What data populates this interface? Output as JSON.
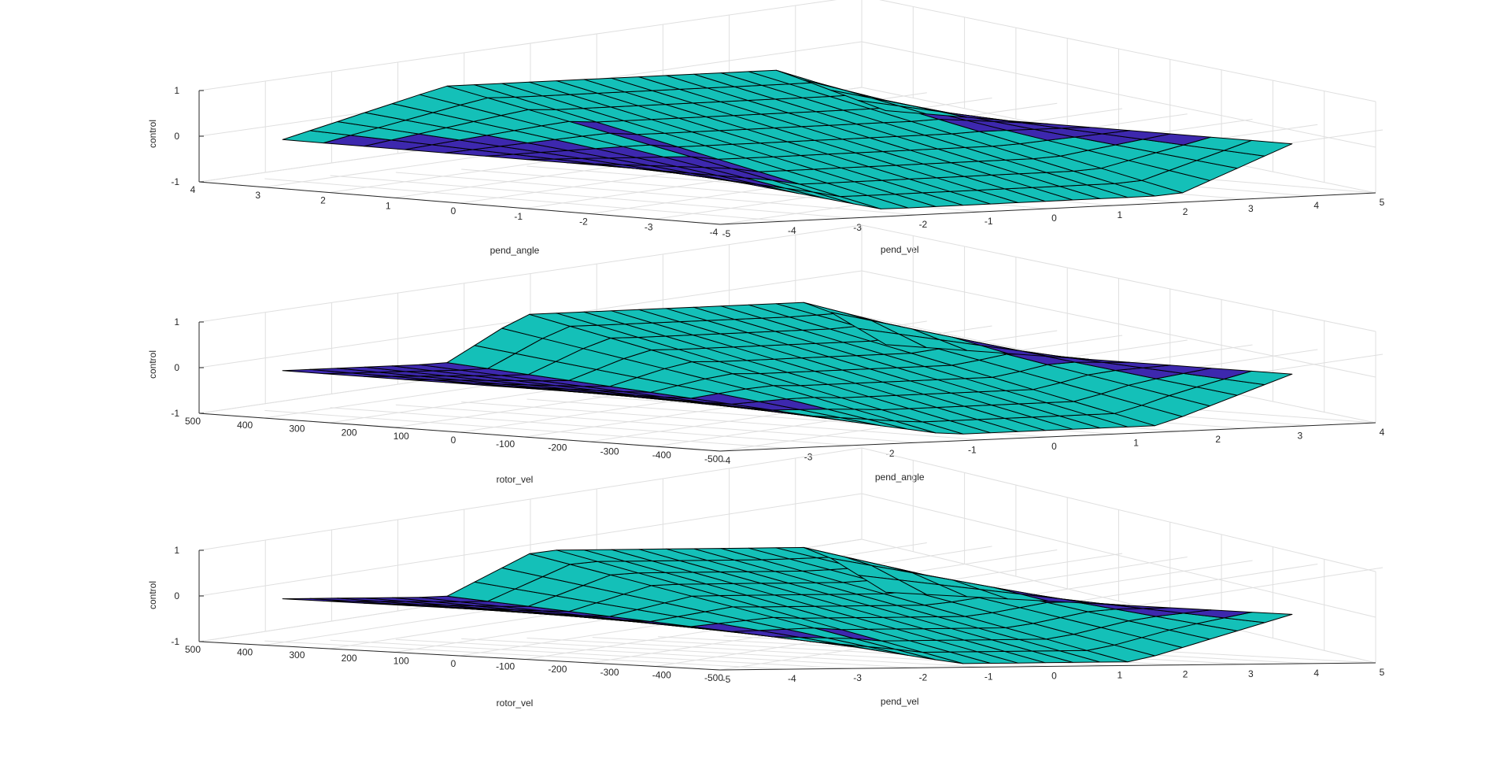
{
  "colors": {
    "positive": "#f7f02e",
    "slope": "#14c0b8",
    "negative": "#3d28ae",
    "grid": "#dfdfdf",
    "axis": "#262626"
  },
  "chart_data": [
    {
      "type": "surface",
      "xlabel": "pend_angle",
      "ylabel": "pend_vel",
      "zlabel": "control",
      "xlim": [
        -4,
        4
      ],
      "ylim": [
        -5,
        5
      ],
      "zlim": [
        -1,
        1
      ],
      "xticks": [
        "4",
        "3",
        "2",
        "1",
        "0",
        "-1",
        "-2",
        "-3",
        "-4"
      ],
      "yticks": [
        "-5",
        "-4",
        "-3",
        "-2",
        "-1",
        "0",
        "1",
        "2",
        "3",
        "4",
        "5"
      ],
      "zticks": [
        "1",
        "0",
        "-1"
      ]
    },
    {
      "type": "surface",
      "xlabel": "rotor_vel",
      "ylabel": "pend_angle",
      "zlabel": "control",
      "xlim": [
        -500,
        500
      ],
      "ylim": [
        -4,
        4
      ],
      "zlim": [
        -1,
        1
      ],
      "xticks": [
        "500",
        "400",
        "300",
        "200",
        "100",
        "0",
        "-100",
        "-200",
        "-300",
        "-400",
        "-500"
      ],
      "yticks": [
        "-4",
        "-3",
        "-2",
        "-1",
        "0",
        "1",
        "2",
        "3",
        "4"
      ],
      "zticks": [
        "1",
        "0",
        "-1"
      ]
    },
    {
      "type": "surface",
      "xlabel": "rotor_vel",
      "ylabel": "pend_vel",
      "zlabel": "control",
      "xlim": [
        -500,
        500
      ],
      "ylim": [
        -5,
        5
      ],
      "zlim": [
        -1,
        1
      ],
      "xticks": [
        "500",
        "400",
        "300",
        "200",
        "100",
        "0",
        "-100",
        "-200",
        "-300",
        "-400",
        "-500"
      ],
      "yticks": [
        "-5",
        "-4",
        "-3",
        "-2",
        "-1",
        "0",
        "1",
        "2",
        "3",
        "4",
        "5"
      ],
      "zticks": [
        "1",
        "0",
        "-1"
      ]
    }
  ]
}
